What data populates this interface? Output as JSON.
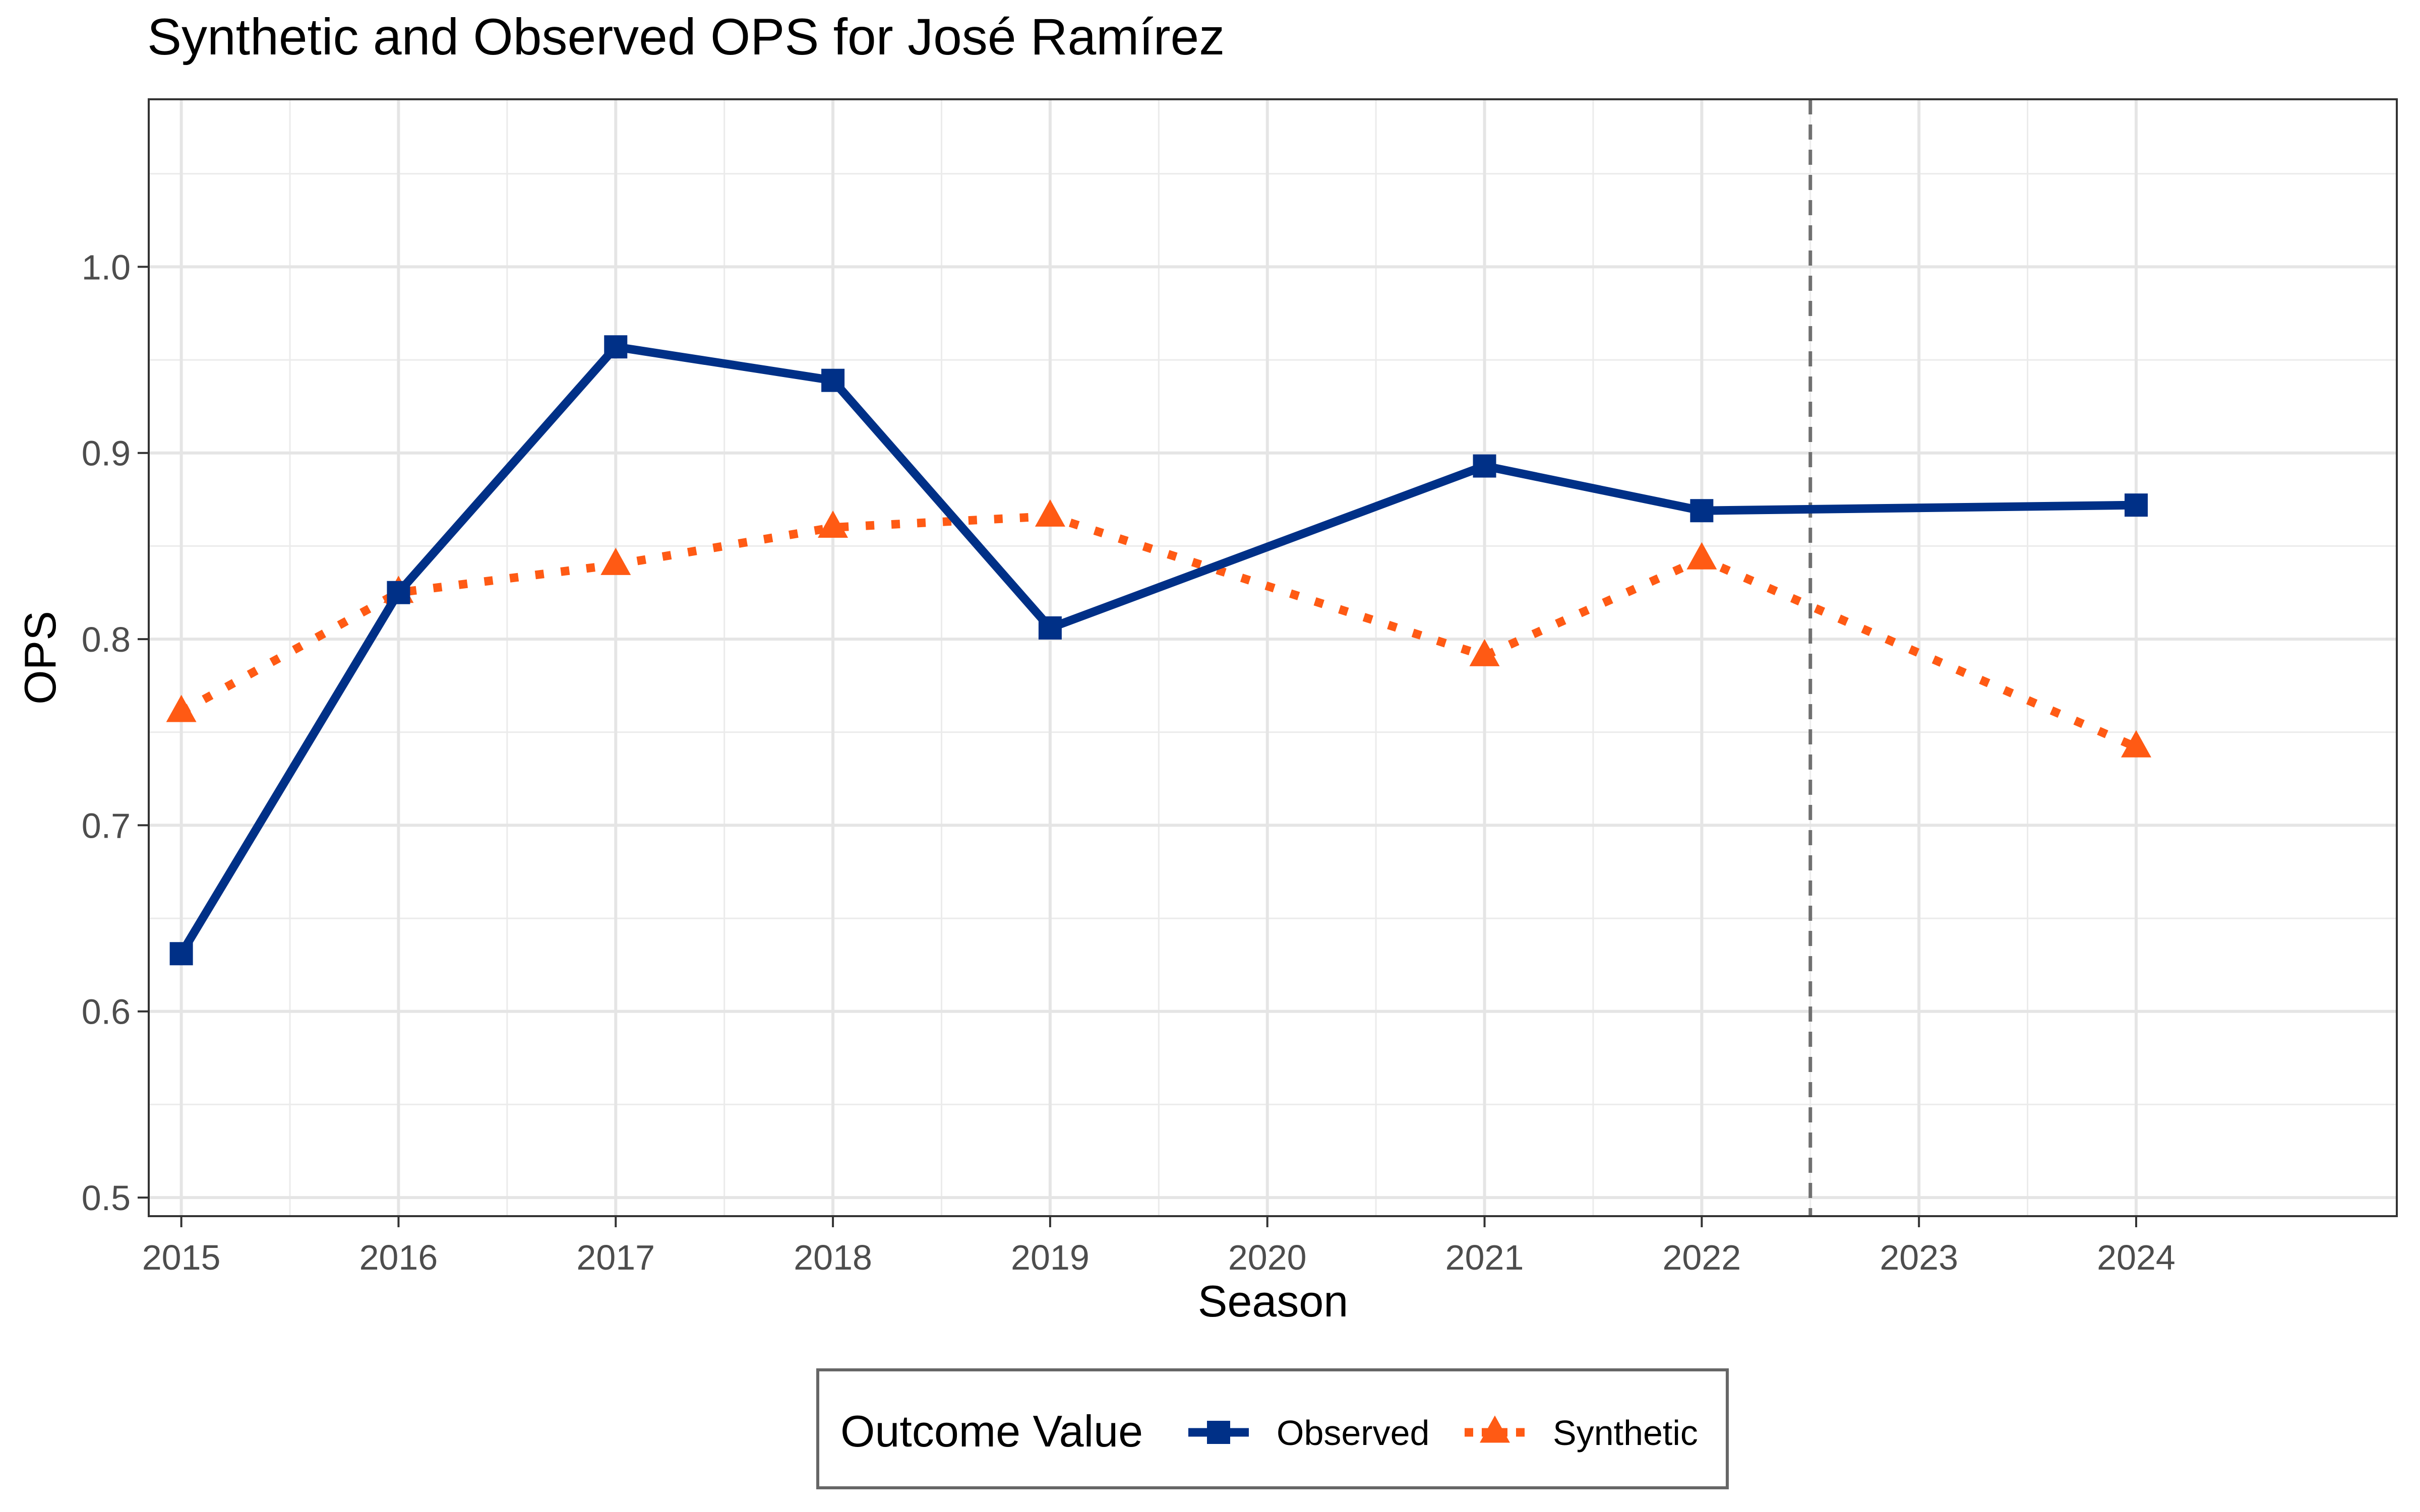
{
  "chart_data": {
    "type": "line",
    "title": "Synthetic and Observed OPS for José Ramírez",
    "xlabel": "Season",
    "ylabel": "OPS",
    "x_ticks": [
      "2015",
      "2016",
      "2017",
      "2018",
      "2019",
      "2020",
      "2021",
      "2022",
      "2023",
      "2024"
    ],
    "y_ticks": [
      "0.5",
      "0.6",
      "0.7",
      "0.8",
      "0.9",
      "1.0"
    ],
    "xlim": [
      2014.85,
      2025.2
    ],
    "ylim": [
      0.49,
      1.09
    ],
    "grid": true,
    "reference_line": {
      "x": 2022.5,
      "style": "dashed",
      "color": "#707070"
    },
    "legend": {
      "title": "Outcome Value",
      "position": "bottom"
    },
    "series": [
      {
        "name": "Observed",
        "color": "#003087",
        "line": "solid",
        "marker": "square",
        "x": [
          2015,
          2016,
          2017,
          2018,
          2019,
          2021,
          2022,
          2024
        ],
        "y": [
          0.631,
          0.825,
          0.957,
          0.939,
          0.806,
          0.893,
          0.869,
          0.872
        ]
      },
      {
        "name": "Synthetic",
        "color": "#FF5A14",
        "line": "dotted",
        "marker": "triangle",
        "x": [
          2015,
          2016,
          2017,
          2018,
          2019,
          2021,
          2022,
          2024
        ],
        "y": [
          0.761,
          0.825,
          0.84,
          0.86,
          0.866,
          0.791,
          0.843,
          0.742
        ]
      }
    ]
  }
}
